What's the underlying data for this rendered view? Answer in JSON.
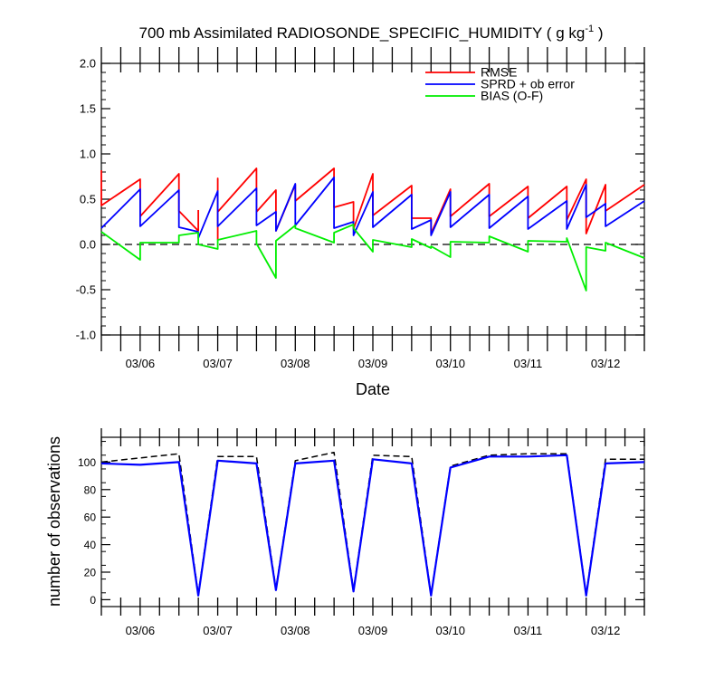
{
  "chart_data": [
    {
      "type": "line",
      "title": "700 mb Assimilated RADIOSONDE_SPECIFIC_HUMIDITY ( g kg",
      "title_superscript": "-1",
      "title_suffix": " )",
      "xlabel": "Date",
      "ylabel": "",
      "ylim": [
        -1.0,
        2.0
      ],
      "yticks": [
        "-1.0",
        "-0.5",
        "0.0",
        "0.5",
        "1.0",
        "1.5",
        "2.0"
      ],
      "ytick_values": [
        -1.0,
        -0.5,
        0.0,
        0.5,
        1.0,
        1.5,
        2.0
      ],
      "xlim": [
        5.5,
        12.5
      ],
      "xtick_labels": [
        "03/06",
        "03/07",
        "03/08",
        "03/09",
        "03/10",
        "03/11",
        "03/12"
      ],
      "xtick_values": [
        6,
        7,
        8,
        9,
        10,
        11,
        12
      ],
      "grid": false,
      "zero_line": true,
      "legend": "top-right",
      "series": [
        {
          "name": "RMSE",
          "color": "#ff0000",
          "segments": [
            [
              [
                5.5,
                0.82
              ],
              [
                5.5,
                0.43
              ],
              [
                6.0,
                0.72
              ],
              [
                6.0,
                0.31
              ],
              [
                6.5,
                0.78
              ],
              [
                6.5,
                0.37
              ],
              [
                6.75,
                0.15
              ]
            ],
            [
              [
                6.75,
                0.15
              ],
              [
                6.75,
                0.38
              ]
            ],
            [
              [
                7.0,
                0.05
              ],
              [
                7.0,
                0.73
              ],
              [
                7.0,
                0.36
              ],
              [
                7.5,
                0.84
              ],
              [
                7.5,
                0.36
              ],
              [
                7.75,
                0.6
              ],
              [
                7.75,
                0.15
              ],
              [
                8.0,
                0.66
              ],
              [
                8.0,
                0.48
              ],
              [
                8.5,
                0.84
              ],
              [
                8.5,
                0.41
              ],
              [
                8.75,
                0.47
              ],
              [
                8.75,
                0.17
              ],
              [
                9.0,
                0.78
              ],
              [
                9.0,
                0.32
              ],
              [
                9.5,
                0.65
              ],
              [
                9.5,
                0.29
              ],
              [
                9.75,
                0.29
              ],
              [
                9.75,
                0.12
              ],
              [
                10.0,
                0.61
              ],
              [
                10.0,
                0.31
              ],
              [
                10.5,
                0.67
              ],
              [
                10.5,
                0.31
              ],
              [
                11.0,
                0.64
              ],
              [
                11.0,
                0.29
              ],
              [
                11.5,
                0.64
              ],
              [
                11.5,
                0.27
              ],
              [
                11.75,
                0.72
              ],
              [
                11.75,
                0.12
              ],
              [
                12.0,
                0.66
              ],
              [
                12.0,
                0.37
              ],
              [
                12.5,
                0.66
              ]
            ]
          ]
        },
        {
          "name": "SPRD + ob error",
          "color": "#0000ff",
          "segments": [
            [
              [
                5.5,
                0.18
              ],
              [
                6.0,
                0.61
              ],
              [
                6.0,
                0.2
              ],
              [
                6.5,
                0.6
              ],
              [
                6.5,
                0.19
              ],
              [
                6.75,
                0.14
              ],
              [
                6.75,
                0.07
              ],
              [
                7.0,
                0.59
              ],
              [
                7.0,
                0.2
              ],
              [
                7.5,
                0.62
              ],
              [
                7.5,
                0.21
              ],
              [
                7.75,
                0.36
              ],
              [
                7.75,
                0.15
              ],
              [
                8.0,
                0.67
              ],
              [
                8.0,
                0.21
              ],
              [
                8.5,
                0.74
              ],
              [
                8.5,
                0.18
              ],
              [
                8.75,
                0.25
              ],
              [
                8.75,
                0.1
              ],
              [
                9.0,
                0.58
              ],
              [
                9.0,
                0.19
              ],
              [
                9.5,
                0.55
              ],
              [
                9.5,
                0.17
              ],
              [
                9.75,
                0.27
              ],
              [
                9.75,
                0.1
              ],
              [
                10.0,
                0.58
              ],
              [
                10.0,
                0.19
              ],
              [
                10.5,
                0.55
              ],
              [
                10.5,
                0.18
              ],
              [
                11.0,
                0.53
              ],
              [
                11.0,
                0.17
              ],
              [
                11.5,
                0.48
              ],
              [
                11.5,
                0.17
              ],
              [
                11.75,
                0.66
              ],
              [
                11.75,
                0.3
              ],
              [
                12.0,
                0.45
              ],
              [
                12.0,
                0.2
              ],
              [
                12.5,
                0.48
              ]
            ]
          ]
        },
        {
          "name": "BIAS (O-F)",
          "color": "#00ee00",
          "segments": [
            [
              [
                5.5,
                0.14
              ],
              [
                6.0,
                -0.17
              ],
              [
                6.0,
                0.02
              ],
              [
                6.5,
                0.02
              ],
              [
                6.5,
                0.1
              ],
              [
                6.75,
                0.13
              ],
              [
                6.75,
                0.0
              ],
              [
                7.0,
                -0.05
              ],
              [
                7.0,
                0.05
              ],
              [
                7.5,
                0.15
              ],
              [
                7.5,
                0.01
              ],
              [
                7.75,
                -0.37
              ],
              [
                7.75,
                0.04
              ],
              [
                8.0,
                0.21
              ],
              [
                8.0,
                0.18
              ],
              [
                8.5,
                0.02
              ],
              [
                8.5,
                0.13
              ],
              [
                8.75,
                0.22
              ],
              [
                8.75,
                0.18
              ],
              [
                9.0,
                -0.08
              ],
              [
                9.0,
                0.05
              ],
              [
                9.5,
                -0.03
              ],
              [
                9.5,
                0.06
              ],
              [
                9.75,
                -0.04
              ],
              [
                9.75,
                -0.02
              ],
              [
                10.0,
                -0.14
              ],
              [
                10.0,
                0.03
              ],
              [
                10.5,
                0.02
              ],
              [
                10.5,
                0.09
              ],
              [
                11.0,
                -0.08
              ],
              [
                11.0,
                0.04
              ],
              [
                11.5,
                0.03
              ],
              [
                11.5,
                0.07
              ],
              [
                11.75,
                -0.51
              ],
              [
                11.75,
                -0.03
              ],
              [
                12.0,
                -0.07
              ],
              [
                12.0,
                0.02
              ],
              [
                12.5,
                -0.15
              ]
            ]
          ]
        }
      ]
    },
    {
      "type": "line",
      "title": "",
      "xlabel": "",
      "ylabel": "number of observations",
      "ylim": [
        -5,
        118
      ],
      "yticks": [
        "0",
        "20",
        "40",
        "60",
        "80",
        "100"
      ],
      "ytick_values": [
        0,
        20,
        40,
        60,
        80,
        100
      ],
      "xlim": [
        5.5,
        12.5
      ],
      "xtick_labels": [
        "03/06",
        "03/07",
        "03/08",
        "03/09",
        "03/10",
        "03/11",
        "03/12"
      ],
      "xtick_values": [
        6,
        7,
        8,
        9,
        10,
        11,
        12
      ],
      "grid": false,
      "series": [
        {
          "color": "#000000",
          "dash": true,
          "points": [
            [
              5.5,
              100
            ],
            [
              6.0,
              103
            ],
            [
              6.5,
              106
            ],
            [
              6.75,
              4
            ],
            [
              7.0,
              104
            ],
            [
              7.5,
              104
            ],
            [
              7.75,
              8
            ],
            [
              8.0,
              101
            ],
            [
              8.5,
              107
            ],
            [
              8.75,
              7
            ],
            [
              9.0,
              105
            ],
            [
              9.5,
              104
            ],
            [
              9.75,
              4
            ],
            [
              10.0,
              97
            ],
            [
              10.5,
              105
            ],
            [
              11.0,
              106
            ],
            [
              11.5,
              106
            ],
            [
              11.75,
              4
            ],
            [
              12.0,
              102
            ],
            [
              12.5,
              102
            ]
          ]
        },
        {
          "color": "#0000ff",
          "dash": false,
          "points": [
            [
              5.5,
              99
            ],
            [
              6.0,
              98
            ],
            [
              6.5,
              100
            ],
            [
              6.75,
              3
            ],
            [
              7.0,
              101
            ],
            [
              7.5,
              99
            ],
            [
              7.75,
              7
            ],
            [
              8.0,
              99
            ],
            [
              8.5,
              101
            ],
            [
              8.75,
              6
            ],
            [
              9.0,
              102
            ],
            [
              9.5,
              99
            ],
            [
              9.75,
              3
            ],
            [
              10.0,
              96
            ],
            [
              10.5,
              104
            ],
            [
              11.0,
              104
            ],
            [
              11.5,
              105
            ],
            [
              11.75,
              3
            ],
            [
              12.0,
              99
            ],
            [
              12.5,
              100
            ]
          ]
        }
      ]
    }
  ]
}
